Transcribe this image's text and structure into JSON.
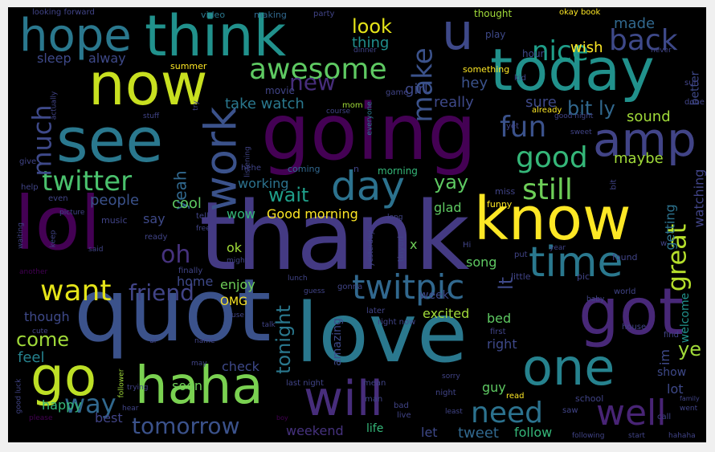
{
  "words": [
    {
      "text": "thank",
      "color": "#443a83",
      "size": 118
    },
    {
      "text": "love",
      "color": "#2a788e",
      "size": 102
    },
    {
      "text": "quot",
      "color": "#3b528b",
      "size": 108
    },
    {
      "text": "going",
      "color": "#440154",
      "size": 96
    },
    {
      "text": "lol",
      "color": "#440154",
      "size": 92
    },
    {
      "text": "know",
      "color": "#fde725",
      "size": 74
    },
    {
      "text": "got",
      "color": "#482878",
      "size": 80
    },
    {
      "text": "today",
      "color": "#21918c",
      "size": 72
    },
    {
      "text": "now",
      "color": "#c8e020",
      "size": 72
    },
    {
      "text": "see",
      "color": "#2a788e",
      "size": 76
    },
    {
      "text": "think",
      "color": "#21918c",
      "size": 70
    },
    {
      "text": "haha",
      "color": "#7ad151",
      "size": 64
    },
    {
      "text": "one",
      "color": "#26828e",
      "size": 62
    },
    {
      "text": "go",
      "color": "#bddf26",
      "size": 66
    },
    {
      "text": "will",
      "color": "#472d7b",
      "size": 60
    },
    {
      "text": "amp",
      "color": "#414487",
      "size": 58
    },
    {
      "text": "hope",
      "color": "#2a788e",
      "size": 56
    },
    {
      "text": "work",
      "color": "#3b528b",
      "size": 54
    },
    {
      "text": "u",
      "color": "#3e4989",
      "size": 62
    },
    {
      "text": "time",
      "color": "#2a788e",
      "size": 52
    },
    {
      "text": "day",
      "color": "#2c728e",
      "size": 50
    },
    {
      "text": "well",
      "color": "#482475",
      "size": 44
    },
    {
      "text": "twitpic",
      "color": "#31688e",
      "size": 42
    },
    {
      "text": "awesome",
      "color": "#5ec962",
      "size": 36
    },
    {
      "text": "twitter",
      "color": "#4ac16d",
      "size": 34
    },
    {
      "text": "want",
      "color": "#e5e419",
      "size": 36
    },
    {
      "text": "good",
      "color": "#35b779",
      "size": 36
    },
    {
      "text": "nice",
      "color": "#1f9e89",
      "size": 34
    },
    {
      "text": "back",
      "color": "#3e4989",
      "size": 36
    },
    {
      "text": "make",
      "color": "#3b528b",
      "size": 34
    },
    {
      "text": "fun",
      "color": "#3b528b",
      "size": 36
    },
    {
      "text": "still",
      "color": "#6ece58",
      "size": 36
    },
    {
      "text": "need",
      "color": "#2c728e",
      "size": 36
    },
    {
      "text": "way",
      "color": "#31688e",
      "size": 32
    },
    {
      "text": "much",
      "color": "#3e4989",
      "size": 32
    },
    {
      "text": "new",
      "color": "#472d7b",
      "size": 28
    },
    {
      "text": "great",
      "color": "#b5de2b",
      "size": 32
    },
    {
      "text": "friend",
      "color": "#414487",
      "size": 28
    },
    {
      "text": "oh",
      "color": "#46327e",
      "size": 30
    },
    {
      "text": "tomorrow",
      "color": "#3b528b",
      "size": 28
    },
    {
      "text": "look",
      "color": "#e5e419",
      "size": 24
    },
    {
      "text": "bit ly",
      "color": "#31688e",
      "size": 24
    },
    {
      "text": "wait",
      "color": "#1f9e89",
      "size": 24
    },
    {
      "text": "yay",
      "color": "#5ec962",
      "size": 24
    },
    {
      "text": "come",
      "color": "#a0da39",
      "size": 24
    },
    {
      "text": "tonight",
      "color": "#2a788e",
      "size": 24
    },
    {
      "text": "lt",
      "color": "#3e4989",
      "size": 24
    },
    {
      "text": "ye",
      "color": "#a0da39",
      "size": 24
    },
    {
      "text": "yeah",
      "color": "#31688e",
      "size": 20
    },
    {
      "text": "thing",
      "color": "#218f8d",
      "size": 18
    },
    {
      "text": "wish",
      "color": "#fde725",
      "size": 18
    },
    {
      "text": "made",
      "color": "#31688e",
      "size": 18
    },
    {
      "text": "really",
      "color": "#3e4989",
      "size": 18
    },
    {
      "text": "girl",
      "color": "#3e4989",
      "size": 18
    },
    {
      "text": "hey",
      "color": "#3b528b",
      "size": 18
    },
    {
      "text": "sure",
      "color": "#3e4989",
      "size": 18
    },
    {
      "text": "sound",
      "color": "#a0da39",
      "size": 18
    },
    {
      "text": "maybe",
      "color": "#a0da39",
      "size": 18
    },
    {
      "text": "watching",
      "color": "#414487",
      "size": 16
    },
    {
      "text": "getting",
      "color": "#2c728e",
      "size": 16
    },
    {
      "text": "sleep",
      "color": "#3e4989",
      "size": 16
    },
    {
      "text": "alway",
      "color": "#3e4989",
      "size": 16
    },
    {
      "text": "take watch",
      "color": "#2a788e",
      "size": 18
    },
    {
      "text": "people",
      "color": "#3b528b",
      "size": 18
    },
    {
      "text": "cool",
      "color": "#5ec962",
      "size": 18
    },
    {
      "text": "wow",
      "color": "#35b779",
      "size": 16
    },
    {
      "text": "working",
      "color": "#2c728e",
      "size": 16
    },
    {
      "text": "Good morning",
      "color": "#fde725",
      "size": 16
    },
    {
      "text": "glad",
      "color": "#5ec962",
      "size": 16
    },
    {
      "text": "ok",
      "color": "#a0da39",
      "size": 16
    },
    {
      "text": "say",
      "color": "#3e4989",
      "size": 16
    },
    {
      "text": "enjoy",
      "color": "#6ece58",
      "size": 16
    },
    {
      "text": "home",
      "color": "#3e4989",
      "size": 16
    },
    {
      "text": "OMG",
      "color": "#fde725",
      "size": 14
    },
    {
      "text": "though",
      "color": "#3e4989",
      "size": 16
    },
    {
      "text": "feel",
      "color": "#26828e",
      "size": 18
    },
    {
      "text": "happy",
      "color": "#35b779",
      "size": 16
    },
    {
      "text": "best",
      "color": "#414487",
      "size": 16
    },
    {
      "text": "check",
      "color": "#3e4989",
      "size": 16
    },
    {
      "text": "soon",
      "color": "#6ece58",
      "size": 16
    },
    {
      "text": "weekend",
      "color": "#46327e",
      "size": 16
    },
    {
      "text": "life",
      "color": "#35b779",
      "size": 14
    },
    {
      "text": "let",
      "color": "#3e4989",
      "size": 16
    },
    {
      "text": "tweet",
      "color": "#31688e",
      "size": 18
    },
    {
      "text": "follow",
      "color": "#35b779",
      "size": 16
    },
    {
      "text": "guy",
      "color": "#5ec962",
      "size": 16
    },
    {
      "text": "bed",
      "color": "#5ec962",
      "size": 16
    },
    {
      "text": "right",
      "color": "#3e4989",
      "size": 16
    },
    {
      "text": "excited",
      "color": "#a0da39",
      "size": 16
    },
    {
      "text": "week",
      "color": "#3e4989",
      "size": 14
    },
    {
      "text": "song",
      "color": "#5ec962",
      "size": 16
    },
    {
      "text": "amazing",
      "color": "#3e4989",
      "size": 14
    },
    {
      "text": "im",
      "color": "#3e4989",
      "size": 16
    },
    {
      "text": "welcome",
      "color": "#21918c",
      "size": 14
    },
    {
      "text": "show",
      "color": "#3e4989",
      "size": 14
    },
    {
      "text": "lot",
      "color": "#3e4989",
      "size": 16
    },
    {
      "text": "better",
      "color": "#3e4989",
      "size": 14
    },
    {
      "text": "x",
      "color": "#6ece58",
      "size": 16
    },
    {
      "text": "thought",
      "color": "#a0da39",
      "size": 12
    },
    {
      "text": "play",
      "color": "#3e4989",
      "size": 12
    },
    {
      "text": "hour",
      "color": "#3e4989",
      "size": 12
    },
    {
      "text": "something",
      "color": "#fde725",
      "size": 11
    },
    {
      "text": "summer",
      "color": "#fde725",
      "size": 11
    },
    {
      "text": "video",
      "color": "#2a788e",
      "size": 11
    },
    {
      "text": "making",
      "color": "#31688e",
      "size": 11
    },
    {
      "text": "party",
      "color": "#414487",
      "size": 10
    },
    {
      "text": "okay book",
      "color": "#fde725",
      "size": 10
    },
    {
      "text": "looking forward",
      "color": "#414487",
      "size": 10
    },
    {
      "text": "dinner",
      "color": "#414487",
      "size": 9
    },
    {
      "text": "never",
      "color": "#414487",
      "size": 9
    },
    {
      "text": "movie",
      "color": "#414487",
      "size": 12
    },
    {
      "text": "game",
      "color": "#414487",
      "size": 10
    },
    {
      "text": "kid",
      "color": "#414487",
      "size": 10
    },
    {
      "text": "sun",
      "color": "#414487",
      "size": 10
    },
    {
      "text": "done",
      "color": "#414487",
      "size": 10
    },
    {
      "text": "good night",
      "color": "#414487",
      "size": 9
    },
    {
      "text": "sweet",
      "color": "#414487",
      "size": 9
    },
    {
      "text": "yet",
      "color": "#414487",
      "size": 10
    },
    {
      "text": "already",
      "color": "#fde725",
      "size": 10
    },
    {
      "text": "mom",
      "color": "#a0da39",
      "size": 10
    },
    {
      "text": "course",
      "color": "#414487",
      "size": 9
    },
    {
      "text": "everyone",
      "color": "#2a788e",
      "size": 9
    },
    {
      "text": "stuff",
      "color": "#414487",
      "size": 9
    },
    {
      "text": "try",
      "color": "#414487",
      "size": 9
    },
    {
      "text": "actually",
      "color": "#414487",
      "size": 9
    },
    {
      "text": "give",
      "color": "#414487",
      "size": 10
    },
    {
      "text": "listening",
      "color": "#414487",
      "size": 9
    },
    {
      "text": "coming",
      "color": "#31688e",
      "size": 11
    },
    {
      "text": "morning",
      "color": "#35b779",
      "size": 12
    },
    {
      "text": "n",
      "color": "#414487",
      "size": 11
    },
    {
      "text": "help",
      "color": "#414487",
      "size": 10
    },
    {
      "text": "even",
      "color": "#414487",
      "size": 10
    },
    {
      "text": "hehe",
      "color": "#414487",
      "size": 10
    },
    {
      "text": "music",
      "color": "#414487",
      "size": 11
    },
    {
      "text": "tell",
      "color": "#414487",
      "size": 10
    },
    {
      "text": "waiting",
      "color": "#414487",
      "size": 9
    },
    {
      "text": "picture",
      "color": "#414487",
      "size": 9
    },
    {
      "text": "free",
      "color": "#414487",
      "size": 9
    },
    {
      "text": "ready",
      "color": "#414487",
      "size": 10
    },
    {
      "text": "miss",
      "color": "#414487",
      "size": 11
    },
    {
      "text": "funny",
      "color": "#fde725",
      "size": 11
    },
    {
      "text": "bit",
      "color": "#414487",
      "size": 10
    },
    {
      "text": "long",
      "color": "#414487",
      "size": 9
    },
    {
      "text": "keep",
      "color": "#414487",
      "size": 9
    },
    {
      "text": "said",
      "color": "#414487",
      "size": 9
    },
    {
      "text": "might",
      "color": "#414487",
      "size": 9
    },
    {
      "text": "yesterday",
      "color": "#414487",
      "size": 9
    },
    {
      "text": "tinyurl",
      "color": "#414487",
      "size": 10
    },
    {
      "text": "Hi",
      "color": "#414487",
      "size": 10
    },
    {
      "text": "year",
      "color": "#414487",
      "size": 9
    },
    {
      "text": "put",
      "color": "#414487",
      "size": 10
    },
    {
      "text": "found",
      "color": "#414487",
      "size": 11
    },
    {
      "text": "w",
      "color": "#414487",
      "size": 10
    },
    {
      "text": "another",
      "color": "#440154",
      "size": 9
    },
    {
      "text": "finally",
      "color": "#414487",
      "size": 10
    },
    {
      "text": "lunch",
      "color": "#414487",
      "size": 9
    },
    {
      "text": "guess",
      "color": "#414487",
      "size": 9
    },
    {
      "text": "gonna",
      "color": "#414487",
      "size": 10
    },
    {
      "text": "little",
      "color": "#414487",
      "size": 11
    },
    {
      "text": "pic",
      "color": "#414487",
      "size": 11
    },
    {
      "text": "baby",
      "color": "#414487",
      "size": 9
    },
    {
      "text": "world",
      "color": "#414487",
      "size": 10
    },
    {
      "text": "later",
      "color": "#414487",
      "size": 10
    },
    {
      "text": "use",
      "color": "#414487",
      "size": 9
    },
    {
      "text": "right now",
      "color": "#414487",
      "size": 10
    },
    {
      "text": "cute",
      "color": "#414487",
      "size": 9
    },
    {
      "text": "name",
      "color": "#414487",
      "size": 9
    },
    {
      "text": "talk",
      "color": "#414487",
      "size": 9
    },
    {
      "text": "house",
      "color": "#414487",
      "size": 10
    },
    {
      "text": "first",
      "color": "#414487",
      "size": 10
    },
    {
      "text": "ur",
      "color": "#414487",
      "size": 9
    },
    {
      "text": "last night",
      "color": "#414487",
      "size": 10
    },
    {
      "text": "follower",
      "color": "#a0da39",
      "size": 9
    },
    {
      "text": "may",
      "color": "#414487",
      "size": 9
    },
    {
      "text": "mean",
      "color": "#414487",
      "size": 10
    },
    {
      "text": "find",
      "color": "#414487",
      "size": 10
    },
    {
      "text": "family",
      "color": "#414487",
      "size": 8
    },
    {
      "text": "sorry",
      "color": "#414487",
      "size": 9
    },
    {
      "text": "good luck",
      "color": "#414487",
      "size": 9
    },
    {
      "text": "trying",
      "color": "#414487",
      "size": 9
    },
    {
      "text": "man",
      "color": "#414487",
      "size": 10
    },
    {
      "text": "night",
      "color": "#414487",
      "size": 10
    },
    {
      "text": "bad",
      "color": "#414487",
      "size": 10
    },
    {
      "text": "school",
      "color": "#414487",
      "size": 11
    },
    {
      "text": "went",
      "color": "#414487",
      "size": 9
    },
    {
      "text": "call",
      "color": "#414487",
      "size": 10
    },
    {
      "text": "please",
      "color": "#440154",
      "size": 9
    },
    {
      "text": "hear",
      "color": "#414487",
      "size": 9
    },
    {
      "text": "live",
      "color": "#414487",
      "size": 10
    },
    {
      "text": "least",
      "color": "#414487",
      "size": 9
    },
    {
      "text": "saw",
      "color": "#414487",
      "size": 10
    },
    {
      "text": "read",
      "color": "#fde725",
      "size": 10
    },
    {
      "text": "boy",
      "color": "#440154",
      "size": 8
    },
    {
      "text": "following",
      "color": "#414487",
      "size": 9
    },
    {
      "text": "start",
      "color": "#414487",
      "size": 9
    },
    {
      "text": "hahaha",
      "color": "#414487",
      "size": 9
    }
  ]
}
